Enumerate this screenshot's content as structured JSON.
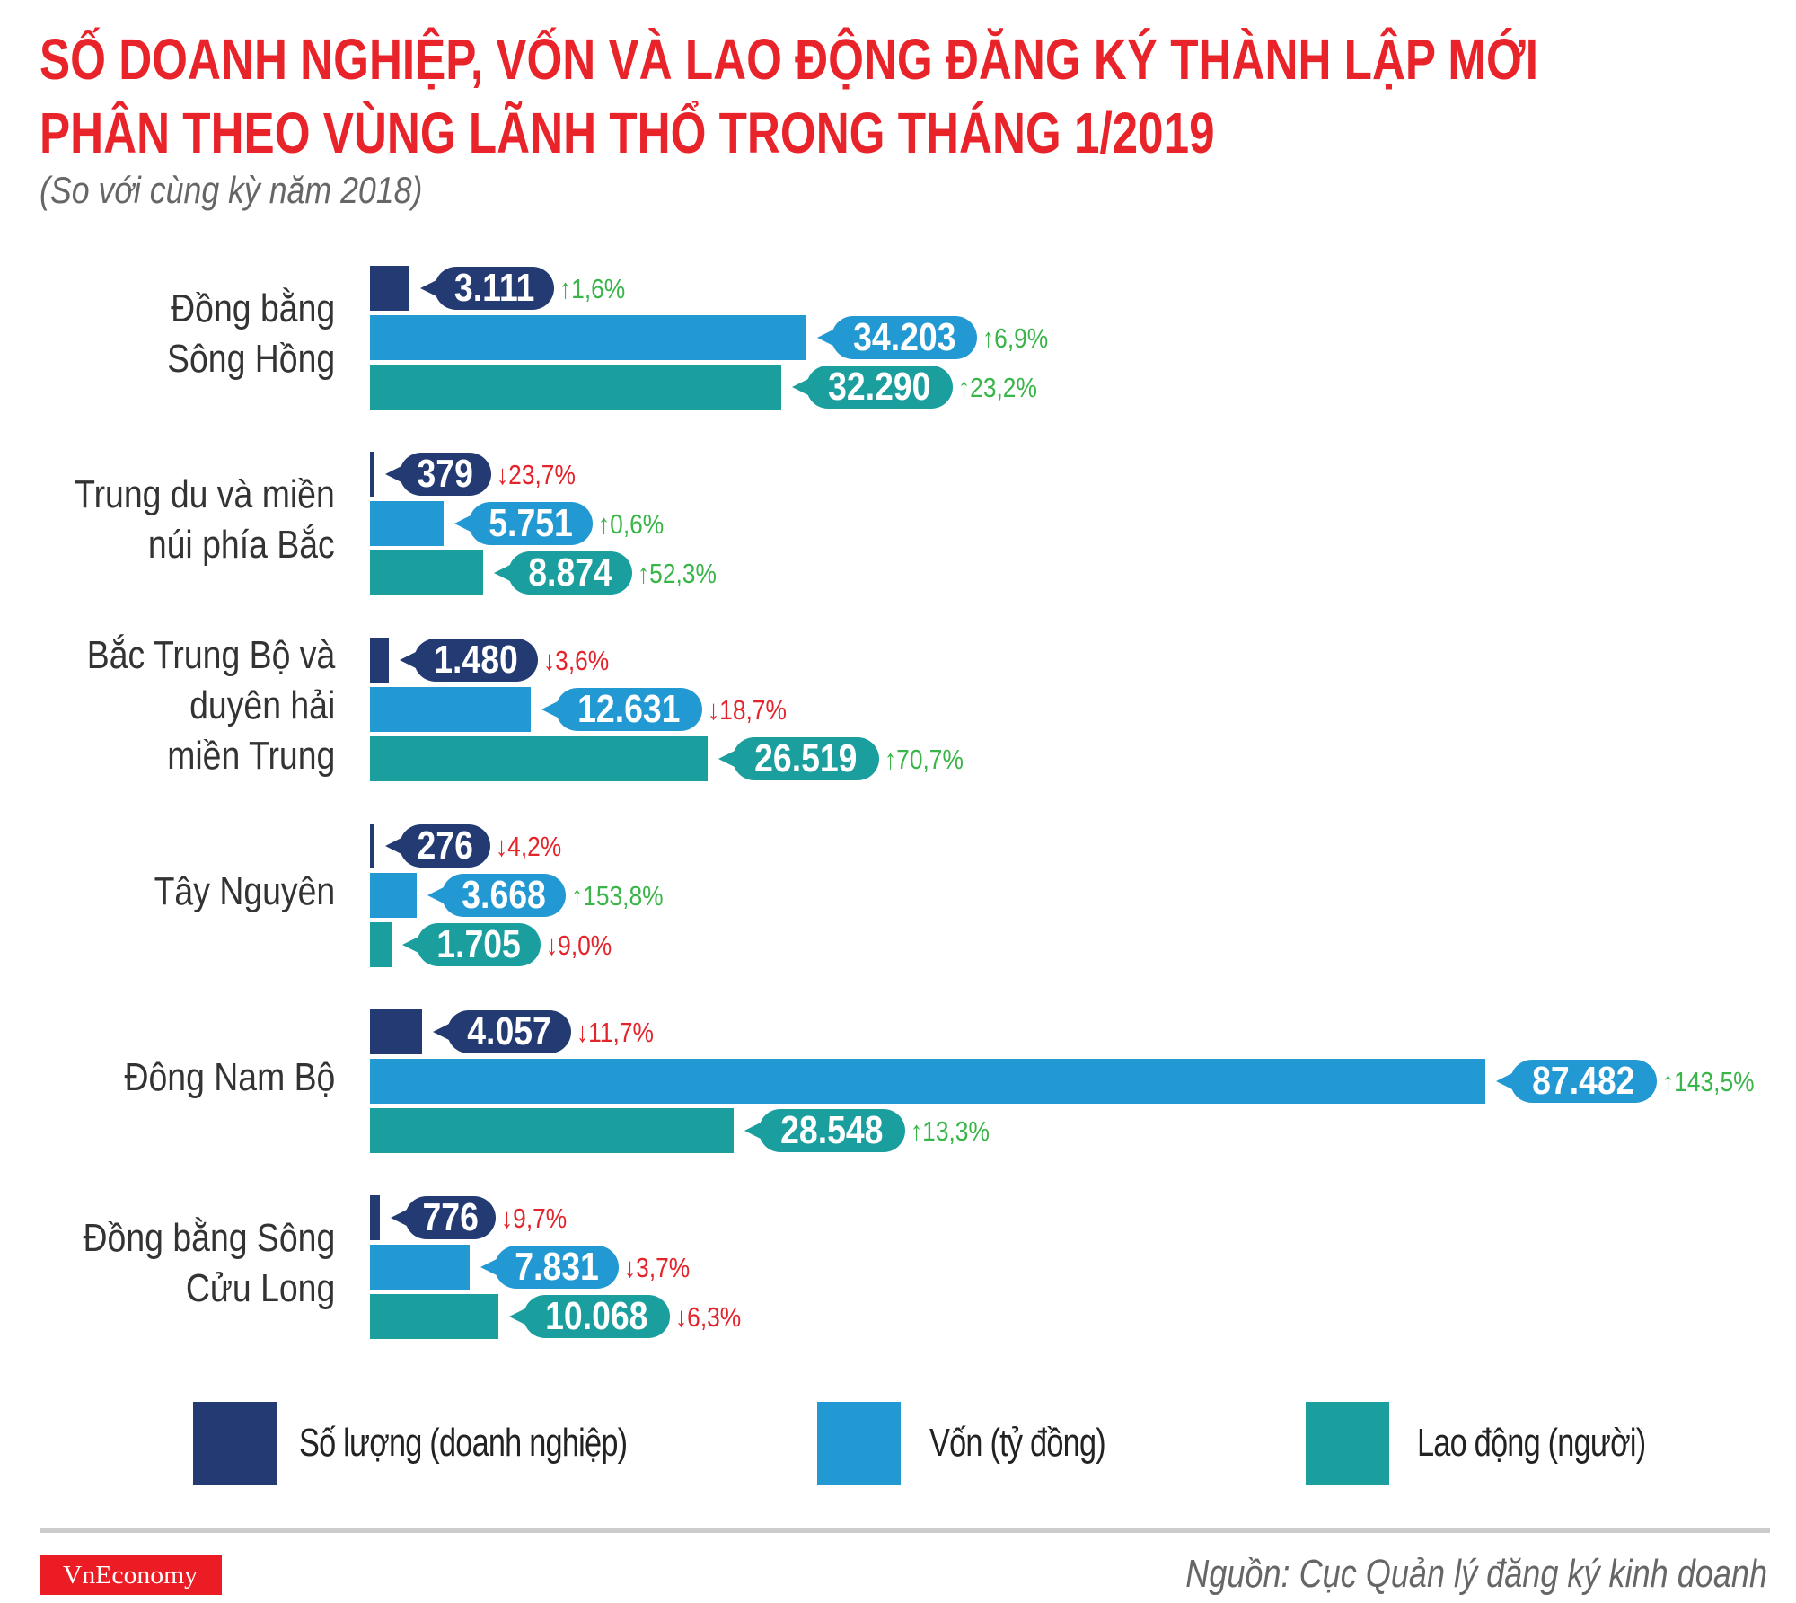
{
  "chart_data": {
    "type": "bar",
    "orientation": "horizontal",
    "title": "SỐ DOANH NGHIỆP, VỐN VÀ LAO ĐỘNG ĐĂNG KÝ THÀNH LẬP MỚI PHÂN THEO VÙNG LÃNH THỔ TRONG THÁNG 1/2019",
    "title_lines": [
      "SỐ DOANH NGHIỆP, VỐN VÀ LAO ĐỘNG ĐĂNG KÝ THÀNH LẬP MỚI",
      "PHÂN THEO VÙNG LÃNH THỔ TRONG THÁNG 1/2019"
    ],
    "subtitle": "(So với cùng kỳ năm 2018)",
    "categories": [
      "Đồng bằng\nSông Hồng",
      "Trung du và miền\nnúi phía Bắc",
      "Bắc Trung Bộ và\nduyên hải\nmiền Trung",
      "Tây Nguyên",
      "Đông Nam Bộ",
      "Đồng bằng Sông\nCửu Long"
    ],
    "series": [
      {
        "name": "Số lượng (doanh nghiệp)",
        "color": "#233a73",
        "values": [
          3111,
          379,
          1480,
          276,
          4057,
          776
        ],
        "labels": [
          "3.111",
          "379",
          "1.480",
          "276",
          "4.057",
          "776"
        ],
        "changes": [
          "1,6%",
          "23,7%",
          "3,6%",
          "4,2%",
          "11,7%",
          "9,7%"
        ],
        "directions": [
          "up",
          "down",
          "down",
          "down",
          "down",
          "down"
        ]
      },
      {
        "name": "Vốn (tỷ đồng)",
        "color": "#2299d3",
        "values": [
          34203,
          5751,
          12631,
          3668,
          87482,
          7831
        ],
        "labels": [
          "34.203",
          "5.751",
          "12.631",
          "3.668",
          "87.482",
          "7.831"
        ],
        "changes": [
          "6,9%",
          "0,6%",
          "18,7%",
          "153,8%",
          "143,5%",
          "3,7%"
        ],
        "directions": [
          "up",
          "up",
          "down",
          "up",
          "up",
          "down"
        ]
      },
      {
        "name": "Lao động (người)",
        "color": "#1a9e9e",
        "values": [
          32290,
          8874,
          26519,
          1705,
          28548,
          10068
        ],
        "labels": [
          "32.290",
          "8.874",
          "26.519",
          "1.705",
          "28.548",
          "10.068"
        ],
        "changes": [
          "23,2%",
          "52,3%",
          "70,7%",
          "9,0%",
          "13,3%",
          "6,3%"
        ],
        "directions": [
          "up",
          "up",
          "up",
          "down",
          "up",
          "down"
        ]
      }
    ],
    "xlim": [
      0,
      87482
    ],
    "grid": false,
    "legend": "bottom",
    "up_color": "#3ab54a",
    "down_color": "#e3242b",
    "up_icon": "↑",
    "down_icon": "↓"
  },
  "footer": {
    "logo": "VnEconomy",
    "source": "Nguồn: Cục Quản lý đăng ký kinh doanh"
  },
  "colors": {
    "title": "#e8232a",
    "logo_bg": "#ec1c24"
  }
}
